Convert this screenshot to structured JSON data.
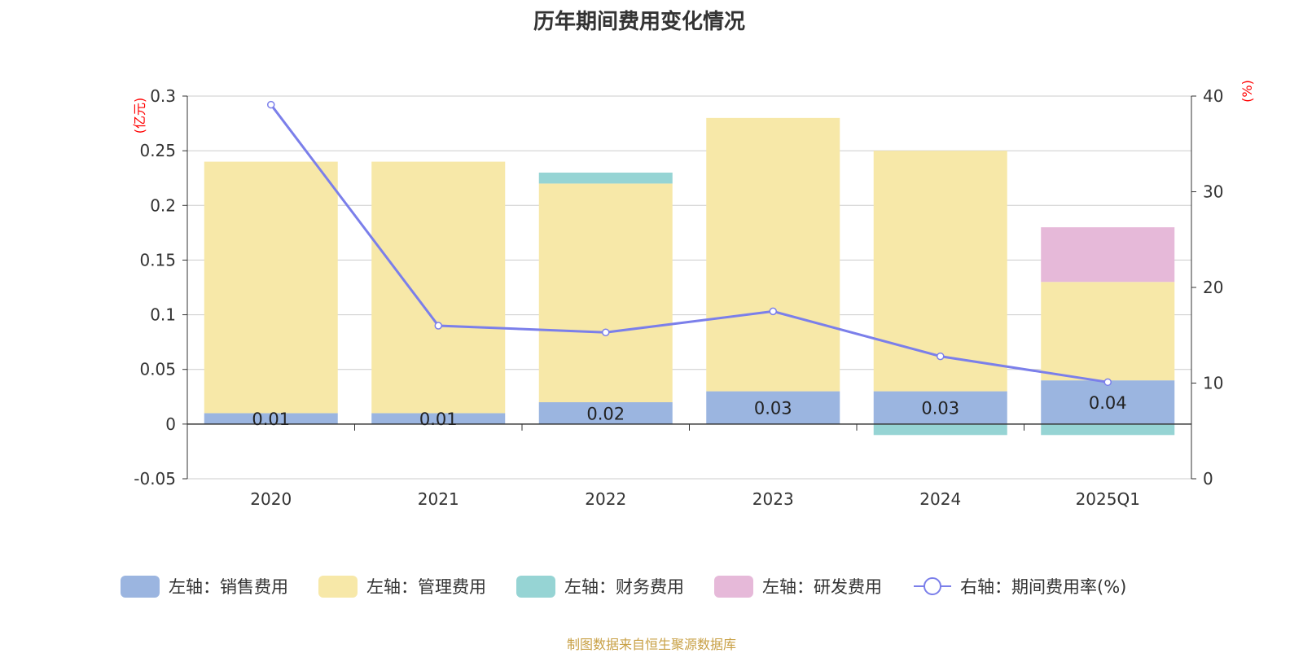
{
  "chart_data": {
    "type": "bar",
    "stacked": true,
    "title": "历年期间费用变化情况",
    "categories": [
      "2020",
      "2021",
      "2022",
      "2023",
      "2024",
      "2025Q1"
    ],
    "left_axis": {
      "unit": "(亿元)",
      "ylim": [
        -0.05,
        0.3
      ],
      "ticks": [
        0.3,
        0.25,
        0.2,
        0.15,
        0.1,
        0.05,
        0,
        -0.05
      ],
      "tick_labels": [
        "0.3",
        "0.25",
        "0.2",
        "0.15",
        "0.1",
        "0.05",
        "0",
        "-0.05"
      ]
    },
    "right_axis": {
      "unit": "(%)",
      "ylim": [
        0,
        40
      ],
      "ticks": [
        40,
        30,
        20,
        10,
        0
      ],
      "tick_labels": [
        "40",
        "30",
        "20",
        "10",
        "0"
      ]
    },
    "series": [
      {
        "name": "左轴：销售费用",
        "axis": "left",
        "kind": "bar",
        "color": "#9bb5e0",
        "values": [
          0.01,
          0.01,
          0.02,
          0.03,
          0.03,
          0.04
        ],
        "labels": [
          "0.01",
          "0.01",
          "0.02",
          "0.03",
          "0.03",
          "0.04"
        ]
      },
      {
        "name": "左轴：管理费用",
        "axis": "left",
        "kind": "bar",
        "color": "#f7e8a8",
        "values": [
          0.23,
          0.23,
          0.2,
          0.25,
          0.22,
          0.09
        ]
      },
      {
        "name": "左轴：财务费用",
        "axis": "left",
        "kind": "bar",
        "color": "#96d4d4",
        "values": [
          0,
          0,
          0.01,
          0,
          -0.01,
          -0.01
        ]
      },
      {
        "name": "左轴：研发费用",
        "axis": "left",
        "kind": "bar",
        "color": "#e6b9d9",
        "values": [
          0,
          0,
          0,
          0,
          0,
          0.05
        ]
      },
      {
        "name": "右轴：期间费用率(%)",
        "axis": "right",
        "kind": "line",
        "color": "#7b7fea",
        "values": [
          39.1,
          16.0,
          15.3,
          17.5,
          12.8,
          10.1
        ]
      }
    ],
    "grid": true,
    "legend_position": "bottom"
  },
  "source_note": "制图数据来自恒生聚源数据库"
}
